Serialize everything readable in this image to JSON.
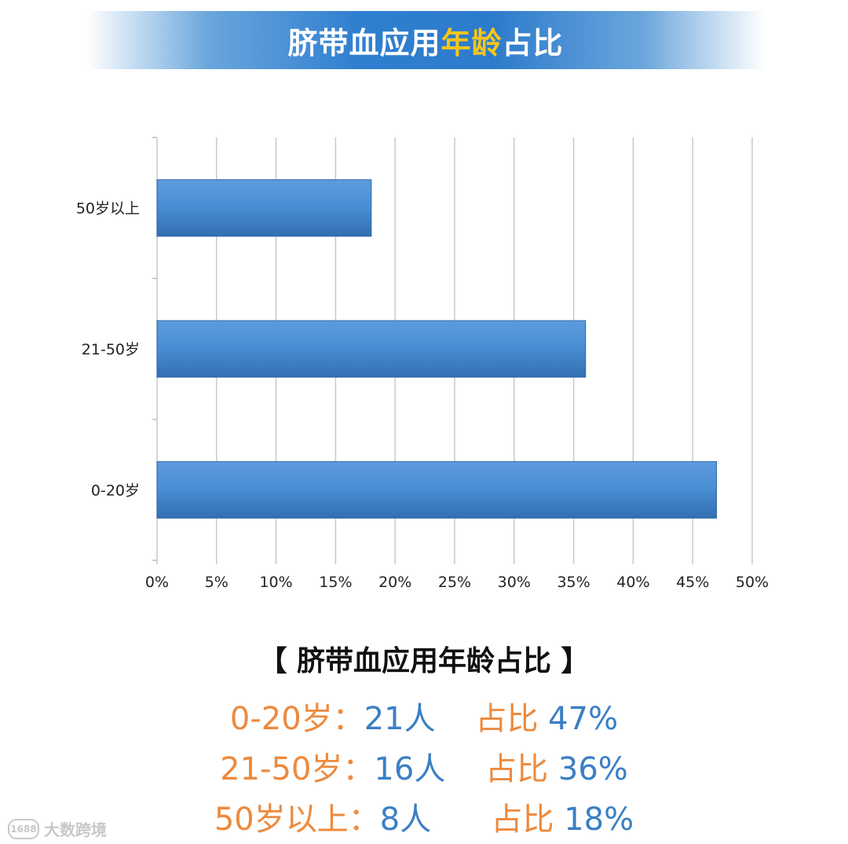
{
  "banner": {
    "title_part1": "脐带血应用",
    "title_highlight": "年龄",
    "title_part2": "占比",
    "colors": {
      "band": "#2f7fd0",
      "highlight": "#f6c619",
      "text": "#ffffff"
    }
  },
  "chart_data": {
    "type": "bar",
    "orientation": "horizontal",
    "categories": [
      "0-20岁",
      "21-50岁",
      "50岁以上"
    ],
    "values": [
      47,
      36,
      18
    ],
    "unit": "%",
    "xlim": [
      0,
      50
    ],
    "x_ticks": [
      "0%",
      "5%",
      "10%",
      "15%",
      "20%",
      "25%",
      "30%",
      "35%",
      "40%",
      "45%",
      "50%"
    ],
    "grid": true,
    "bar_color": "#4a8fd4"
  },
  "summary": {
    "heading": "【 脐带血应用年龄占比 】",
    "rows": [
      {
        "label": "0-20岁：",
        "count": "21人",
        "share_label": "占比",
        "share_value": "47%"
      },
      {
        "label": "21-50岁：",
        "count": "16人",
        "share_label": "占比",
        "share_value": "36%"
      },
      {
        "label": "50岁以上：",
        "count": "8人",
        "share_label": "占比",
        "share_value": "18%"
      }
    ],
    "colors": {
      "label": "#ec8a3e",
      "value": "#3b7fc4"
    }
  },
  "watermark": {
    "logo": "1688",
    "text": "大数跨境"
  }
}
